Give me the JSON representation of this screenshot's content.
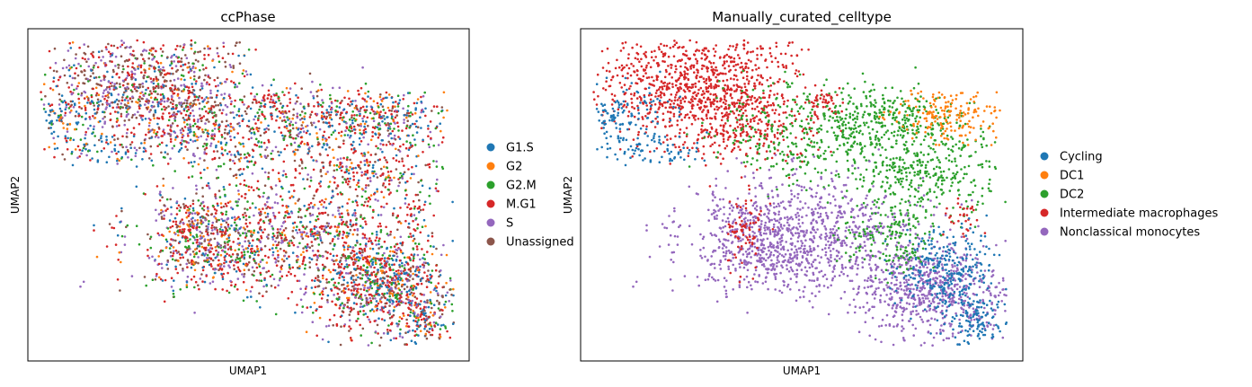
{
  "chart_data": [
    {
      "type": "scatter",
      "title": "ccPhase",
      "xlabel": "UMAP1",
      "ylabel": "UMAP2",
      "grid": false,
      "ticks": false,
      "legend_placement": "right",
      "series": [
        {
          "name": "G1.S",
          "color": "#1f77b4"
        },
        {
          "name": "G2",
          "color": "#ff7f0e"
        },
        {
          "name": "G2.M",
          "color": "#2ca02c"
        },
        {
          "name": "M.G1",
          "color": "#d62728"
        },
        {
          "name": "S",
          "color": "#9467bd"
        },
        {
          "name": "Unassigned",
          "color": "#8c564b"
        }
      ]
    },
    {
      "type": "scatter",
      "title": "Manually_curated_celltype",
      "xlabel": "UMAP1",
      "ylabel": "UMAP2",
      "grid": false,
      "ticks": false,
      "legend_placement": "right",
      "series": [
        {
          "name": "Cycling",
          "color": "#1f77b4"
        },
        {
          "name": "DC1",
          "color": "#ff7f0e"
        },
        {
          "name": "DC2",
          "color": "#2ca02c"
        },
        {
          "name": "Intermediate macrophages",
          "color": "#d62728"
        },
        {
          "name": "Nonclassical monocytes",
          "color": "#9467bd"
        }
      ]
    }
  ]
}
